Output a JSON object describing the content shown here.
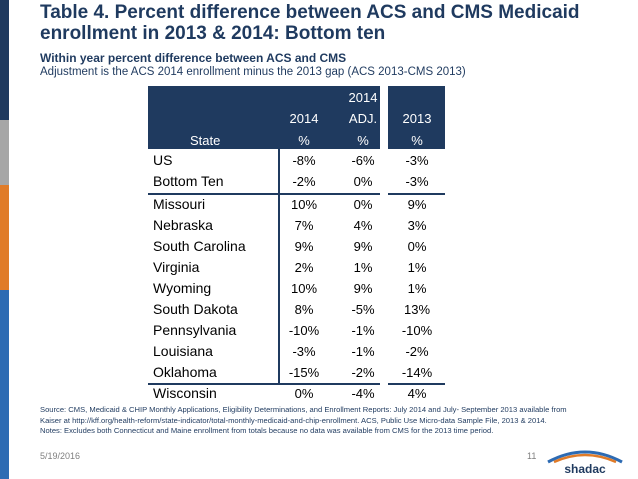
{
  "slide": {
    "title": "Table 4. Percent difference between ACS and CMS Medicaid enrollment in 2013 & 2014: Bottom ten",
    "subtitle": "Within year percent difference between ACS and CMS",
    "note": "Adjustment is the ACS 2014 enrollment minus the 2013 gap (ACS 2013-CMS 2013)"
  },
  "table": {
    "headers": {
      "state": "State",
      "col1_line1": "2014",
      "col1_line2": "%",
      "col2_line0": "2014",
      "col2_line1": "ADJ.",
      "col2_line2": "%",
      "col3_line1": "2013",
      "col3_line2": "%"
    },
    "rows": [
      {
        "state": "US",
        "v2014": "-8%",
        "adj": "-6%",
        "v2013": "-3%"
      },
      {
        "state": "Bottom Ten",
        "v2014": "-2%",
        "adj": "0%",
        "v2013": "-3%"
      },
      {
        "state": "Missouri",
        "v2014": "10%",
        "adj": "0%",
        "v2013": "9%"
      },
      {
        "state": "Nebraska",
        "v2014": "7%",
        "adj": "4%",
        "v2013": "3%"
      },
      {
        "state": "South Carolina",
        "v2014": "9%",
        "adj": "9%",
        "v2013": "0%"
      },
      {
        "state": "Virginia",
        "v2014": "2%",
        "adj": "1%",
        "v2013": "1%"
      },
      {
        "state": "Wyoming",
        "v2014": "10%",
        "adj": "9%",
        "v2013": "1%"
      },
      {
        "state": "South Dakota",
        "v2014": "8%",
        "adj": "-5%",
        "v2013": "13%"
      },
      {
        "state": "Pennsylvania",
        "v2014": "-10%",
        "adj": "-1%",
        "v2013": "-10%"
      },
      {
        "state": "Louisiana",
        "v2014": "-3%",
        "adj": "-1%",
        "v2013": "-2%"
      },
      {
        "state": "Oklahoma",
        "v2014": "-15%",
        "adj": "-2%",
        "v2013": "-14%"
      },
      {
        "state": "Wisconsin",
        "v2014": "0%",
        "adj": "-4%",
        "v2013": "4%"
      }
    ]
  },
  "footer": {
    "source_line1": "Source: CMS, Medicaid & CHIP Monthly Applications, Eligibility Determinations, and Enrollment Reports: July 2014 and July- September 2013 available from",
    "source_line2": "Kaiser at  http://kff.org/health-reform/state-indicator/total-monthly-medicaid-and-chip-enrollment.  ACS, Public Use Micro-data Sample File, 2013 & 2014.",
    "source_line3": "Notes: Excludes both Connecticut and Maine enrollment from totals because no data was available from CMS for the 2013 time period.",
    "date": "5/19/2016",
    "page_number": "11",
    "logo_text": "shadac"
  },
  "colors": {
    "navy": "#1f3a5f",
    "orange": "#e07b28",
    "blue": "#2d6bb3",
    "grey": "#a6a6a6"
  }
}
